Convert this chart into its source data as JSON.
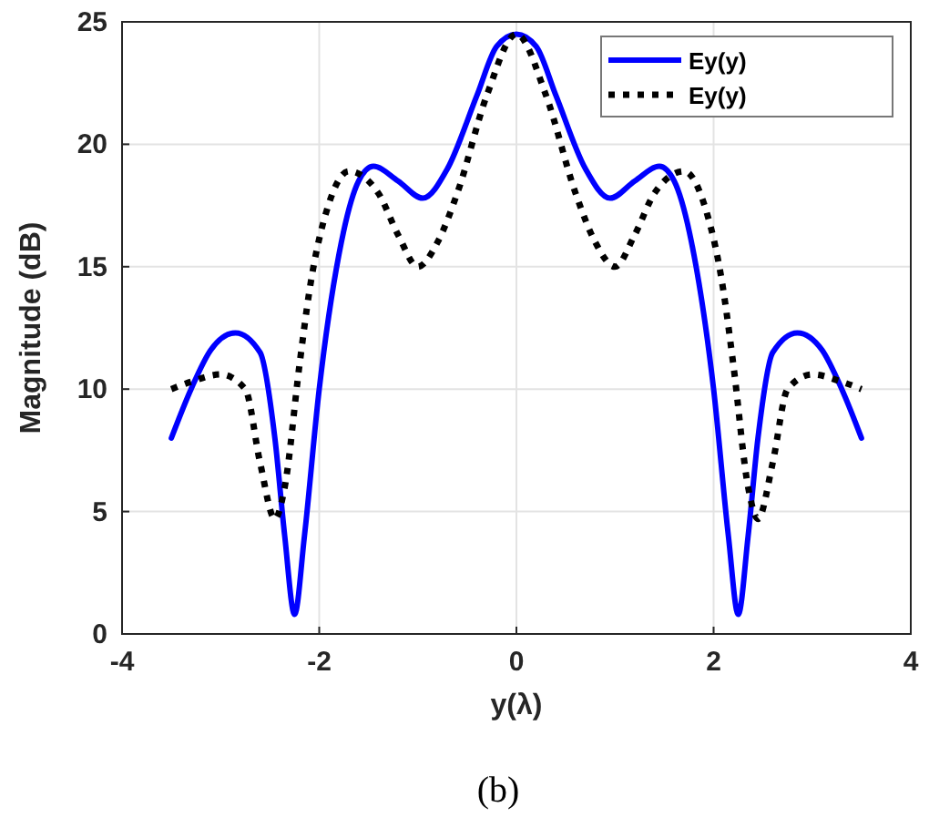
{
  "chart_data": {
    "type": "line",
    "xlabel": "y(λ)",
    "ylabel": "Magnitude (dB)",
    "annotations": [
      "(b)"
    ],
    "xlim": [
      -4,
      4
    ],
    "xticks": [
      -4,
      -2,
      0,
      2,
      4
    ],
    "ylim": [
      0,
      25
    ],
    "yticks": [
      0,
      5,
      10,
      15,
      20,
      25
    ],
    "grid": true,
    "legend": "top right",
    "series": [
      {
        "name": "Ey(y)",
        "color": "#0000ff",
        "line_style": "solid",
        "x": [
          -3.5,
          -3.3,
          -3.1,
          -2.85,
          -2.6,
          -2.45,
          -2.35,
          -2.25,
          -2.15,
          -2.0,
          -1.8,
          -1.6,
          -1.45,
          -1.2,
          -0.95,
          -0.7,
          -0.4,
          -0.2,
          0,
          0.2,
          0.4,
          0.7,
          0.95,
          1.2,
          1.45,
          1.6,
          1.8,
          2.0,
          2.15,
          2.25,
          2.35,
          2.45,
          2.6,
          2.85,
          3.1,
          3.3,
          3.5
        ],
        "values": [
          8,
          10,
          11.6,
          12.3,
          11.5,
          8,
          4,
          0.8,
          4,
          10,
          15.5,
          18.5,
          19.1,
          18.5,
          17.8,
          19,
          22,
          24,
          24.5,
          24,
          22,
          19,
          17.8,
          18.5,
          19.1,
          18.5,
          15.5,
          10,
          4,
          0.8,
          4,
          8,
          11.5,
          12.3,
          11.6,
          10,
          8
        ]
      },
      {
        "name": "Ey(y)",
        "color": "#000000",
        "line_style": "dotted",
        "x": [
          -3.5,
          -3.3,
          -3.0,
          -2.75,
          -2.6,
          -2.45,
          -2.35,
          -2.2,
          -2.1,
          -1.9,
          -1.7,
          -1.4,
          -1.2,
          -1.0,
          -0.8,
          -0.6,
          -0.3,
          0,
          0.3,
          0.6,
          0.8,
          1.0,
          1.2,
          1.4,
          1.7,
          1.9,
          2.1,
          2.2,
          2.35,
          2.45,
          2.6,
          2.75,
          3.0,
          3.3,
          3.5
        ],
        "values": [
          10,
          10.3,
          10.6,
          10,
          7,
          4.7,
          6,
          11,
          14,
          17.6,
          18.9,
          18,
          16.3,
          15,
          16,
          18,
          22,
          24.5,
          22,
          18,
          16,
          15,
          16.3,
          18,
          18.9,
          17.6,
          14,
          11,
          6,
          4.7,
          7,
          10,
          10.6,
          10.3,
          10
        ]
      }
    ]
  }
}
